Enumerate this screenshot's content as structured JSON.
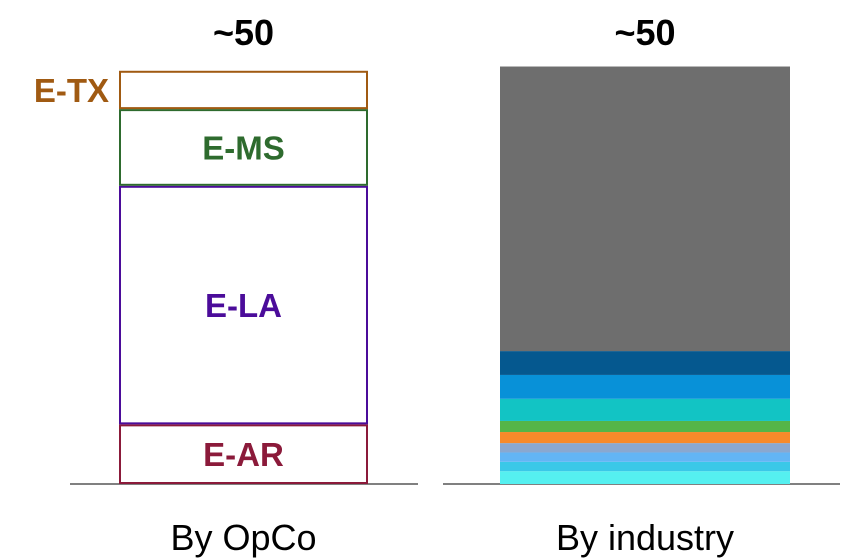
{
  "chart_data": {
    "type": "bar",
    "stacked": true,
    "categories": [
      "By OpCo",
      "By industry"
    ],
    "totals": [
      "~50",
      "~50"
    ],
    "series_by_category": [
      [
        {
          "name": "E-AR",
          "value": 7,
          "color": "#8B1A3A",
          "style": "outline"
        },
        {
          "name": "E-LA",
          "value": 28,
          "color": "#4B0C9A",
          "style": "outline"
        },
        {
          "name": "E-MS",
          "value": 9,
          "color": "#2E6B2E",
          "style": "outline"
        },
        {
          "name": "E-TX",
          "value": 4.5,
          "color": "#A05A12",
          "style": "outline"
        }
      ],
      [
        {
          "value": 1.5,
          "color": "#55F0F0"
        },
        {
          "value": 1.1,
          "color": "#3AC8E8"
        },
        {
          "value": 1.1,
          "color": "#63B5F5"
        },
        {
          "value": 1.1,
          "color": "#8AA8D0"
        },
        {
          "value": 1.3,
          "color": "#F78A2A"
        },
        {
          "value": 1.3,
          "color": "#55B548"
        },
        {
          "value": 2.6,
          "color": "#12C4C4"
        },
        {
          "value": 2.8,
          "color": "#0891D8"
        },
        {
          "value": 2.8,
          "color": "#05588F"
        },
        {
          "value": 33.4,
          "color": "#6E6E6E"
        }
      ]
    ],
    "ylim": [
      0,
      50
    ],
    "grid": false,
    "legend": "none",
    "baseline_color": "#808080"
  }
}
